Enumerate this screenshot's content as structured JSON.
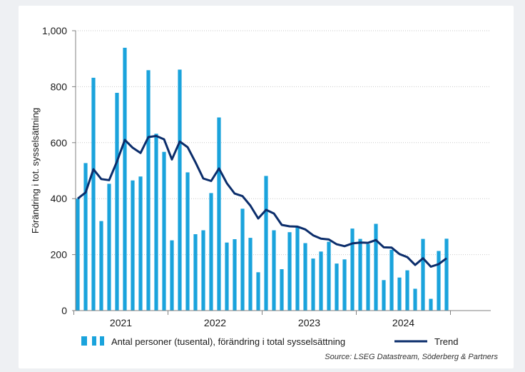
{
  "chart_data": {
    "type": "bar",
    "title": "",
    "ylabel": "Förändring i tot. sysselsättning",
    "xlabel": "",
    "ylim": [
      0,
      1000
    ],
    "yticks": [
      "0",
      "200",
      "400",
      "600",
      "800",
      "1,000"
    ],
    "year_labels": [
      "2021",
      "2022",
      "2023",
      "2024"
    ],
    "grid": true,
    "legend_position": "bottom",
    "colors": {
      "bars": "#1aa3dc",
      "trend": "#0b2d6b"
    },
    "series": [
      {
        "name": "Antal personer (tusental), förändring i total sysselsättning",
        "values": [
          400,
          527,
          832,
          320,
          453,
          778,
          939,
          465,
          479,
          859,
          632,
          567,
          251,
          861,
          494,
          273,
          287,
          420,
          690,
          243,
          255,
          364,
          260,
          137,
          481,
          287,
          148,
          280,
          302,
          241,
          186,
          211,
          246,
          168,
          183,
          293,
          256,
          238,
          310,
          109,
          217,
          118,
          144,
          78,
          256,
          42,
          213,
          257
        ]
      },
      {
        "name": "Trend",
        "values": [
          400,
          422,
          505,
          470,
          466,
          533,
          610,
          582,
          563,
          620,
          624,
          612,
          540,
          604,
          584,
          530,
          472,
          463,
          508,
          455,
          418,
          409,
          375,
          329,
          360,
          347,
          306,
          301,
          300,
          290,
          269,
          257,
          254,
          237,
          230,
          240,
          243,
          242,
          252,
          226,
          225,
          202,
          191,
          163,
          187,
          157,
          166,
          187
        ]
      }
    ]
  },
  "source": "Source: LSEG Datastream, Söderberg & Partners"
}
